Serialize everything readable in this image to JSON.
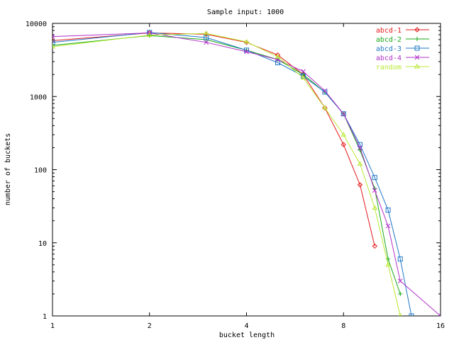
{
  "chart_data": {
    "type": "line",
    "title": "Sample input: 1000",
    "xlabel": "bucket length",
    "ylabel": "number of buckets",
    "xscale": "log2",
    "yscale": "log10",
    "xlim": [
      1,
      16
    ],
    "ylim": [
      1,
      10000
    ],
    "xticks": [
      {
        "v": 1,
        "label": "1"
      },
      {
        "v": 2,
        "label": "2"
      },
      {
        "v": 4,
        "label": "4"
      },
      {
        "v": 8,
        "label": "8"
      },
      {
        "v": 16,
        "label": "16"
      }
    ],
    "yticks": [
      {
        "v": 1,
        "label": "1"
      },
      {
        "v": 10,
        "label": "10"
      },
      {
        "v": 100,
        "label": "100"
      },
      {
        "v": 1000,
        "label": "1000"
      },
      {
        "v": 10000,
        "label": "10000"
      }
    ],
    "grid": false,
    "legend": "top-right",
    "series": [
      {
        "name": "abcd-1",
        "color": "#e41a1c",
        "marker": "diamond",
        "points": [
          [
            1,
            5800
          ],
          [
            2,
            7400
          ],
          [
            3,
            7100
          ],
          [
            4,
            5500
          ],
          [
            5,
            3700
          ],
          [
            6,
            2000
          ],
          [
            7,
            700
          ],
          [
            8,
            220
          ],
          [
            9,
            62
          ],
          [
            10,
            9
          ]
        ]
      },
      {
        "name": "abcd-2",
        "color": "#18a818",
        "marker": "plus",
        "points": [
          [
            1,
            5000
          ],
          [
            2,
            6800
          ],
          [
            3,
            6000
          ],
          [
            4,
            4300
          ],
          [
            5,
            3200
          ],
          [
            6,
            2000
          ],
          [
            7,
            1150
          ],
          [
            8,
            580
          ],
          [
            9,
            185
          ],
          [
            10,
            55
          ],
          [
            11,
            6
          ],
          [
            12,
            2
          ]
        ]
      },
      {
        "name": "abcd-3",
        "color": "#1f78c8",
        "marker": "square",
        "points": [
          [
            1,
            5500
          ],
          [
            2,
            7500
          ],
          [
            3,
            6400
          ],
          [
            4,
            4300
          ],
          [
            5,
            2900
          ],
          [
            6,
            1900
          ],
          [
            7,
            1150
          ],
          [
            8,
            580
          ],
          [
            9,
            220
          ],
          [
            10,
            78
          ],
          [
            11,
            28
          ],
          [
            12,
            6
          ],
          [
            13,
            1
          ]
        ]
      },
      {
        "name": "abcd-4",
        "color": "#b030c8",
        "marker": "x",
        "points": [
          [
            1,
            6600
          ],
          [
            2,
            7400
          ],
          [
            3,
            5500
          ],
          [
            4,
            4100
          ],
          [
            5,
            3200
          ],
          [
            6,
            2200
          ],
          [
            7,
            1200
          ],
          [
            8,
            580
          ],
          [
            9,
            200
          ],
          [
            10,
            52
          ],
          [
            11,
            17
          ],
          [
            12,
            3
          ],
          [
            16,
            1
          ]
        ]
      },
      {
        "name": "random",
        "color": "#b8e830",
        "marker": "triangle",
        "points": [
          [
            1,
            4800
          ],
          [
            2,
            6900
          ],
          [
            3,
            7300
          ],
          [
            4,
            5600
          ],
          [
            5,
            3500
          ],
          [
            6,
            1800
          ],
          [
            7,
            700
          ],
          [
            8,
            300
          ],
          [
            9,
            120
          ],
          [
            10,
            30
          ],
          [
            11,
            5
          ],
          [
            12,
            1
          ]
        ]
      }
    ]
  }
}
